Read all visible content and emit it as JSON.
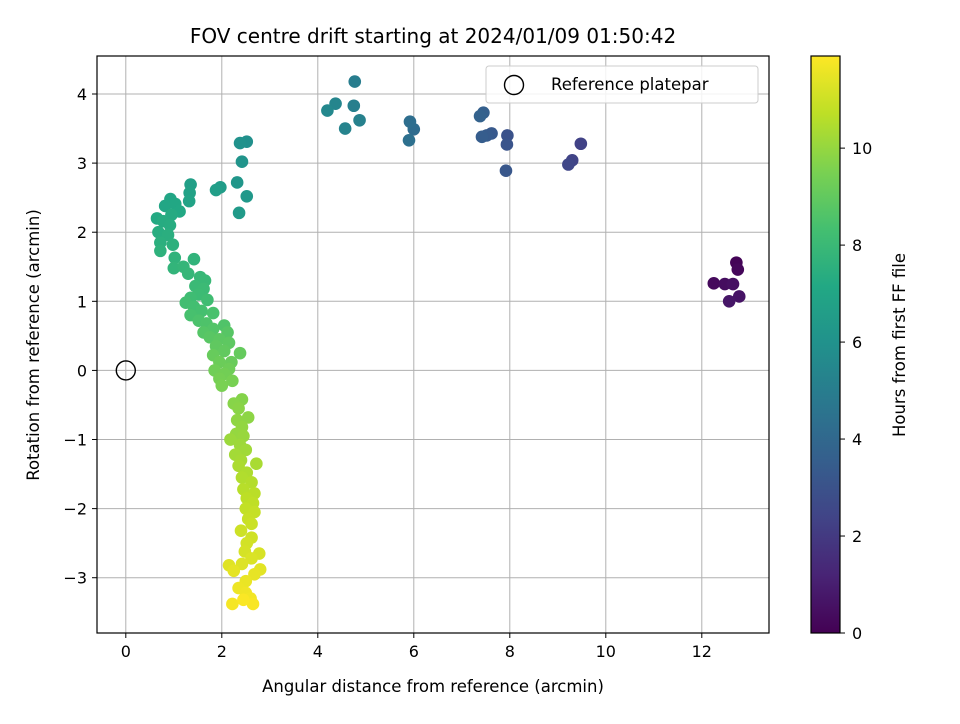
{
  "chart_data": {
    "type": "scatter",
    "title": "FOV centre drift starting at 2024/01/09 01:50:42",
    "xlabel": "Angular distance from reference (arcmin)",
    "ylabel": "Rotation from reference (arcmin)",
    "xlim": [
      -0.6,
      13.4
    ],
    "ylim": [
      -3.8,
      4.55
    ],
    "xticks": [
      0,
      2,
      4,
      6,
      8,
      10,
      12
    ],
    "yticks": [
      -3,
      -2,
      -1,
      0,
      1,
      2,
      3,
      4
    ],
    "grid": true,
    "legend": {
      "position": "top-right",
      "entries": [
        "Reference platepar"
      ]
    },
    "reference_point": {
      "x": 0,
      "y": 0
    },
    "colorbar": {
      "label": "Hours from first FF file",
      "colormap": "viridis",
      "min": 0,
      "max": 11.9,
      "ticks": [
        0,
        2,
        4,
        6,
        8,
        10
      ]
    },
    "points": [
      {
        "x": 12.72,
        "y": 1.56,
        "c": 0.1
      },
      {
        "x": 12.75,
        "y": 1.46,
        "c": 0.2
      },
      {
        "x": 12.25,
        "y": 1.26,
        "c": 0.3
      },
      {
        "x": 12.48,
        "y": 1.25,
        "c": 0.4
      },
      {
        "x": 12.65,
        "y": 1.25,
        "c": 0.5
      },
      {
        "x": 12.78,
        "y": 1.07,
        "c": 0.6
      },
      {
        "x": 12.57,
        "y": 1.0,
        "c": 0.7
      },
      {
        "x": 9.48,
        "y": 3.28,
        "c": 2.3
      },
      {
        "x": 9.3,
        "y": 3.04,
        "c": 2.4
      },
      {
        "x": 9.22,
        "y": 2.98,
        "c": 2.5
      },
      {
        "x": 7.95,
        "y": 3.4,
        "c": 3.0
      },
      {
        "x": 7.94,
        "y": 3.27,
        "c": 3.1
      },
      {
        "x": 7.92,
        "y": 2.89,
        "c": 3.2
      },
      {
        "x": 7.62,
        "y": 3.43,
        "c": 3.3
      },
      {
        "x": 7.52,
        "y": 3.4,
        "c": 3.4
      },
      {
        "x": 7.42,
        "y": 3.38,
        "c": 3.5
      },
      {
        "x": 7.45,
        "y": 3.73,
        "c": 3.6
      },
      {
        "x": 7.38,
        "y": 3.68,
        "c": 3.7
      },
      {
        "x": 6.0,
        "y": 3.49,
        "c": 4.2
      },
      {
        "x": 5.92,
        "y": 3.6,
        "c": 4.3
      },
      {
        "x": 5.9,
        "y": 3.33,
        "c": 4.4
      },
      {
        "x": 4.77,
        "y": 4.18,
        "c": 5.0
      },
      {
        "x": 4.75,
        "y": 3.83,
        "c": 5.1
      },
      {
        "x": 4.87,
        "y": 3.62,
        "c": 5.2
      },
      {
        "x": 4.57,
        "y": 3.5,
        "c": 5.3
      },
      {
        "x": 4.37,
        "y": 3.86,
        "c": 5.4
      },
      {
        "x": 4.2,
        "y": 3.76,
        "c": 5.5
      },
      {
        "x": 2.52,
        "y": 3.31,
        "c": 5.9
      },
      {
        "x": 2.38,
        "y": 3.29,
        "c": 6.0
      },
      {
        "x": 2.42,
        "y": 3.02,
        "c": 6.1
      },
      {
        "x": 2.32,
        "y": 2.72,
        "c": 6.2
      },
      {
        "x": 2.52,
        "y": 2.52,
        "c": 6.3
      },
      {
        "x": 2.36,
        "y": 2.28,
        "c": 6.4
      },
      {
        "x": 1.97,
        "y": 2.65,
        "c": 6.5
      },
      {
        "x": 1.88,
        "y": 2.61,
        "c": 6.6
      },
      {
        "x": 1.35,
        "y": 2.69,
        "c": 6.7
      },
      {
        "x": 1.33,
        "y": 2.57,
        "c": 6.8
      },
      {
        "x": 1.32,
        "y": 2.45,
        "c": 6.9
      },
      {
        "x": 0.93,
        "y": 2.48,
        "c": 7.0
      },
      {
        "x": 0.82,
        "y": 2.38,
        "c": 7.05
      },
      {
        "x": 1.03,
        "y": 2.41,
        "c": 7.1
      },
      {
        "x": 1.12,
        "y": 2.3,
        "c": 7.15
      },
      {
        "x": 0.65,
        "y": 2.2,
        "c": 7.2
      },
      {
        "x": 0.95,
        "y": 2.25,
        "c": 7.25
      },
      {
        "x": 0.78,
        "y": 2.16,
        "c": 7.3
      },
      {
        "x": 0.92,
        "y": 2.1,
        "c": 7.35
      },
      {
        "x": 0.68,
        "y": 2.0,
        "c": 7.4
      },
      {
        "x": 0.88,
        "y": 1.96,
        "c": 7.45
      },
      {
        "x": 0.72,
        "y": 1.85,
        "c": 7.5
      },
      {
        "x": 0.98,
        "y": 1.82,
        "c": 7.55
      },
      {
        "x": 0.72,
        "y": 1.73,
        "c": 7.6
      },
      {
        "x": 1.02,
        "y": 1.63,
        "c": 7.65
      },
      {
        "x": 1.42,
        "y": 1.61,
        "c": 7.7
      },
      {
        "x": 1.0,
        "y": 1.48,
        "c": 7.75
      },
      {
        "x": 1.2,
        "y": 1.5,
        "c": 7.8
      },
      {
        "x": 1.3,
        "y": 1.4,
        "c": 7.85
      },
      {
        "x": 1.55,
        "y": 1.35,
        "c": 7.9
      },
      {
        "x": 1.65,
        "y": 1.3,
        "c": 7.95
      },
      {
        "x": 1.45,
        "y": 1.22,
        "c": 8.0
      },
      {
        "x": 1.62,
        "y": 1.18,
        "c": 8.05
      },
      {
        "x": 1.52,
        "y": 1.1,
        "c": 8.1
      },
      {
        "x": 1.35,
        "y": 1.05,
        "c": 8.15
      },
      {
        "x": 1.7,
        "y": 1.02,
        "c": 8.2
      },
      {
        "x": 1.25,
        "y": 0.98,
        "c": 8.25
      },
      {
        "x": 1.42,
        "y": 0.92,
        "c": 8.3
      },
      {
        "x": 1.58,
        "y": 0.86,
        "c": 8.35
      },
      {
        "x": 1.35,
        "y": 0.8,
        "c": 8.4
      },
      {
        "x": 1.82,
        "y": 0.83,
        "c": 8.45
      },
      {
        "x": 1.52,
        "y": 0.72,
        "c": 8.5
      },
      {
        "x": 1.68,
        "y": 0.68,
        "c": 8.55
      },
      {
        "x": 2.05,
        "y": 0.65,
        "c": 8.6
      },
      {
        "x": 1.82,
        "y": 0.6,
        "c": 8.65
      },
      {
        "x": 1.62,
        "y": 0.55,
        "c": 8.7
      },
      {
        "x": 2.12,
        "y": 0.55,
        "c": 8.75
      },
      {
        "x": 1.75,
        "y": 0.48,
        "c": 8.8
      },
      {
        "x": 1.95,
        "y": 0.45,
        "c": 8.85
      },
      {
        "x": 2.15,
        "y": 0.4,
        "c": 8.9
      },
      {
        "x": 1.88,
        "y": 0.35,
        "c": 8.95
      },
      {
        "x": 2.05,
        "y": 0.28,
        "c": 9.0
      },
      {
        "x": 2.38,
        "y": 0.25,
        "c": 9.05
      },
      {
        "x": 1.82,
        "y": 0.22,
        "c": 9.1
      },
      {
        "x": 2.2,
        "y": 0.12,
        "c": 9.15
      },
      {
        "x": 1.95,
        "y": 0.12,
        "c": 9.2
      },
      {
        "x": 2.15,
        "y": 0.02,
        "c": 9.25
      },
      {
        "x": 1.85,
        "y": 0.0,
        "c": 9.3
      },
      {
        "x": 2.05,
        "y": -0.05,
        "c": 9.35
      },
      {
        "x": 1.95,
        "y": -0.12,
        "c": 9.4
      },
      {
        "x": 2.22,
        "y": -0.15,
        "c": 9.45
      },
      {
        "x": 2.0,
        "y": -0.22,
        "c": 9.5
      },
      {
        "x": 2.42,
        "y": -0.42,
        "c": 9.7
      },
      {
        "x": 2.25,
        "y": -0.48,
        "c": 9.75
      },
      {
        "x": 2.35,
        "y": -0.55,
        "c": 9.8
      },
      {
        "x": 2.55,
        "y": -0.68,
        "c": 9.85
      },
      {
        "x": 2.32,
        "y": -0.72,
        "c": 9.9
      },
      {
        "x": 2.42,
        "y": -0.82,
        "c": 9.95
      },
      {
        "x": 2.3,
        "y": -0.92,
        "c": 10.0
      },
      {
        "x": 2.45,
        "y": -0.95,
        "c": 10.05
      },
      {
        "x": 2.18,
        "y": -1.0,
        "c": 10.1
      },
      {
        "x": 2.38,
        "y": -1.08,
        "c": 10.15
      },
      {
        "x": 2.5,
        "y": -1.15,
        "c": 10.2
      },
      {
        "x": 2.28,
        "y": -1.22,
        "c": 10.25
      },
      {
        "x": 2.4,
        "y": -1.3,
        "c": 10.3
      },
      {
        "x": 2.72,
        "y": -1.35,
        "c": 10.35
      },
      {
        "x": 2.35,
        "y": -1.38,
        "c": 10.4
      },
      {
        "x": 2.52,
        "y": -1.48,
        "c": 10.45
      },
      {
        "x": 2.42,
        "y": -1.55,
        "c": 10.5
      },
      {
        "x": 2.62,
        "y": -1.62,
        "c": 10.55
      },
      {
        "x": 2.45,
        "y": -1.72,
        "c": 10.6
      },
      {
        "x": 2.68,
        "y": -1.78,
        "c": 10.65
      },
      {
        "x": 2.52,
        "y": -1.85,
        "c": 10.7
      },
      {
        "x": 2.65,
        "y": -1.92,
        "c": 10.75
      },
      {
        "x": 2.5,
        "y": -2.0,
        "c": 10.8
      },
      {
        "x": 2.68,
        "y": -2.05,
        "c": 10.85
      },
      {
        "x": 2.55,
        "y": -2.15,
        "c": 10.9
      },
      {
        "x": 2.62,
        "y": -2.22,
        "c": 10.95
      },
      {
        "x": 2.4,
        "y": -2.32,
        "c": 11.0
      },
      {
        "x": 2.62,
        "y": -2.42,
        "c": 11.05
      },
      {
        "x": 2.52,
        "y": -2.5,
        "c": 11.1
      },
      {
        "x": 2.48,
        "y": -2.62,
        "c": 11.15
      },
      {
        "x": 2.78,
        "y": -2.65,
        "c": 11.2
      },
      {
        "x": 2.62,
        "y": -2.72,
        "c": 11.25
      },
      {
        "x": 2.42,
        "y": -2.8,
        "c": 11.3
      },
      {
        "x": 2.15,
        "y": -2.82,
        "c": 11.35
      },
      {
        "x": 2.8,
        "y": -2.88,
        "c": 11.4
      },
      {
        "x": 2.25,
        "y": -2.9,
        "c": 11.45
      },
      {
        "x": 2.68,
        "y": -2.95,
        "c": 11.5
      },
      {
        "x": 2.5,
        "y": -3.05,
        "c": 11.55
      },
      {
        "x": 2.35,
        "y": -3.15,
        "c": 11.6
      },
      {
        "x": 2.5,
        "y": -3.22,
        "c": 11.65
      },
      {
        "x": 2.6,
        "y": -3.3,
        "c": 11.7
      },
      {
        "x": 2.22,
        "y": -3.38,
        "c": 11.75
      },
      {
        "x": 2.65,
        "y": -3.38,
        "c": 11.8
      },
      {
        "x": 2.45,
        "y": -3.32,
        "c": 11.85
      }
    ]
  }
}
